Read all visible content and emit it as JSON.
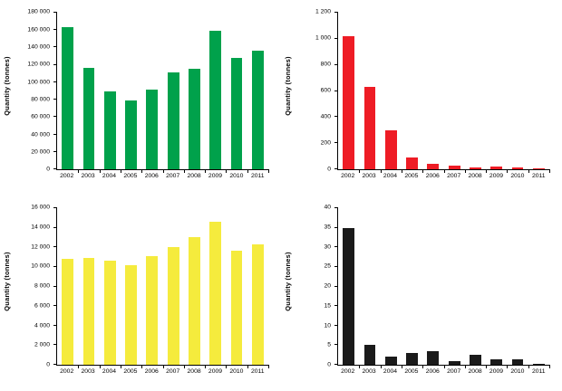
{
  "figure": {
    "background": "#ffffff",
    "layout": "2x2-grid"
  },
  "chart_data": [
    {
      "id": "top-left-green",
      "type": "bar",
      "title": "",
      "xlabel": "",
      "ylabel": "Quantity (tonnes)",
      "categories": [
        "2002",
        "2003",
        "2004",
        "2005",
        "2006",
        "2007",
        "2008",
        "2009",
        "2010",
        "2011"
      ],
      "values": [
        163000,
        117000,
        90000,
        79000,
        92000,
        111000,
        115000,
        159000,
        128000,
        136000
      ],
      "ylim": [
        0,
        180000
      ],
      "ytick_step": 20000,
      "bar_color": "#00a14b",
      "grid": false,
      "legend_position": "none"
    },
    {
      "id": "top-right-red",
      "type": "bar",
      "title": "",
      "xlabel": "",
      "ylabel": "Quantity (tonnes)",
      "categories": [
        "2002",
        "2003",
        "2004",
        "2005",
        "2006",
        "2007",
        "2008",
        "2009",
        "2010",
        "2011"
      ],
      "values": [
        1020,
        630,
        300,
        90,
        40,
        25,
        15,
        20,
        15,
        8
      ],
      "ylim": [
        0,
        1200
      ],
      "ytick_step": 200,
      "bar_color": "#ee1c25",
      "grid": false,
      "legend_position": "none"
    },
    {
      "id": "bottom-left-yellow",
      "type": "bar",
      "title": "",
      "xlabel": "",
      "ylabel": "Quantity (tonnes)",
      "categories": [
        "2002",
        "2003",
        "2004",
        "2005",
        "2006",
        "2007",
        "2008",
        "2009",
        "2010",
        "2011"
      ],
      "values": [
        10800,
        10900,
        10600,
        10200,
        11100,
        12000,
        13000,
        14600,
        11700,
        12300
      ],
      "ylim": [
        0,
        16000
      ],
      "ytick_step": 2000,
      "bar_color": "#f5eb3d",
      "grid": false,
      "legend_position": "none"
    },
    {
      "id": "bottom-right-black",
      "type": "bar",
      "title": "",
      "xlabel": "",
      "ylabel": "Quantity (tonnes)",
      "categories": [
        "2002",
        "2003",
        "2004",
        "2005",
        "2006",
        "2007",
        "2008",
        "2009",
        "2010",
        "2011"
      ],
      "values": [
        35,
        5,
        2,
        3,
        3.5,
        1,
        2.5,
        1.5,
        1.5,
        0.3
      ],
      "ylim": [
        0,
        40
      ],
      "ytick_step": 5,
      "bar_color": "#1a1a1a",
      "grid": false,
      "legend_position": "none"
    }
  ]
}
